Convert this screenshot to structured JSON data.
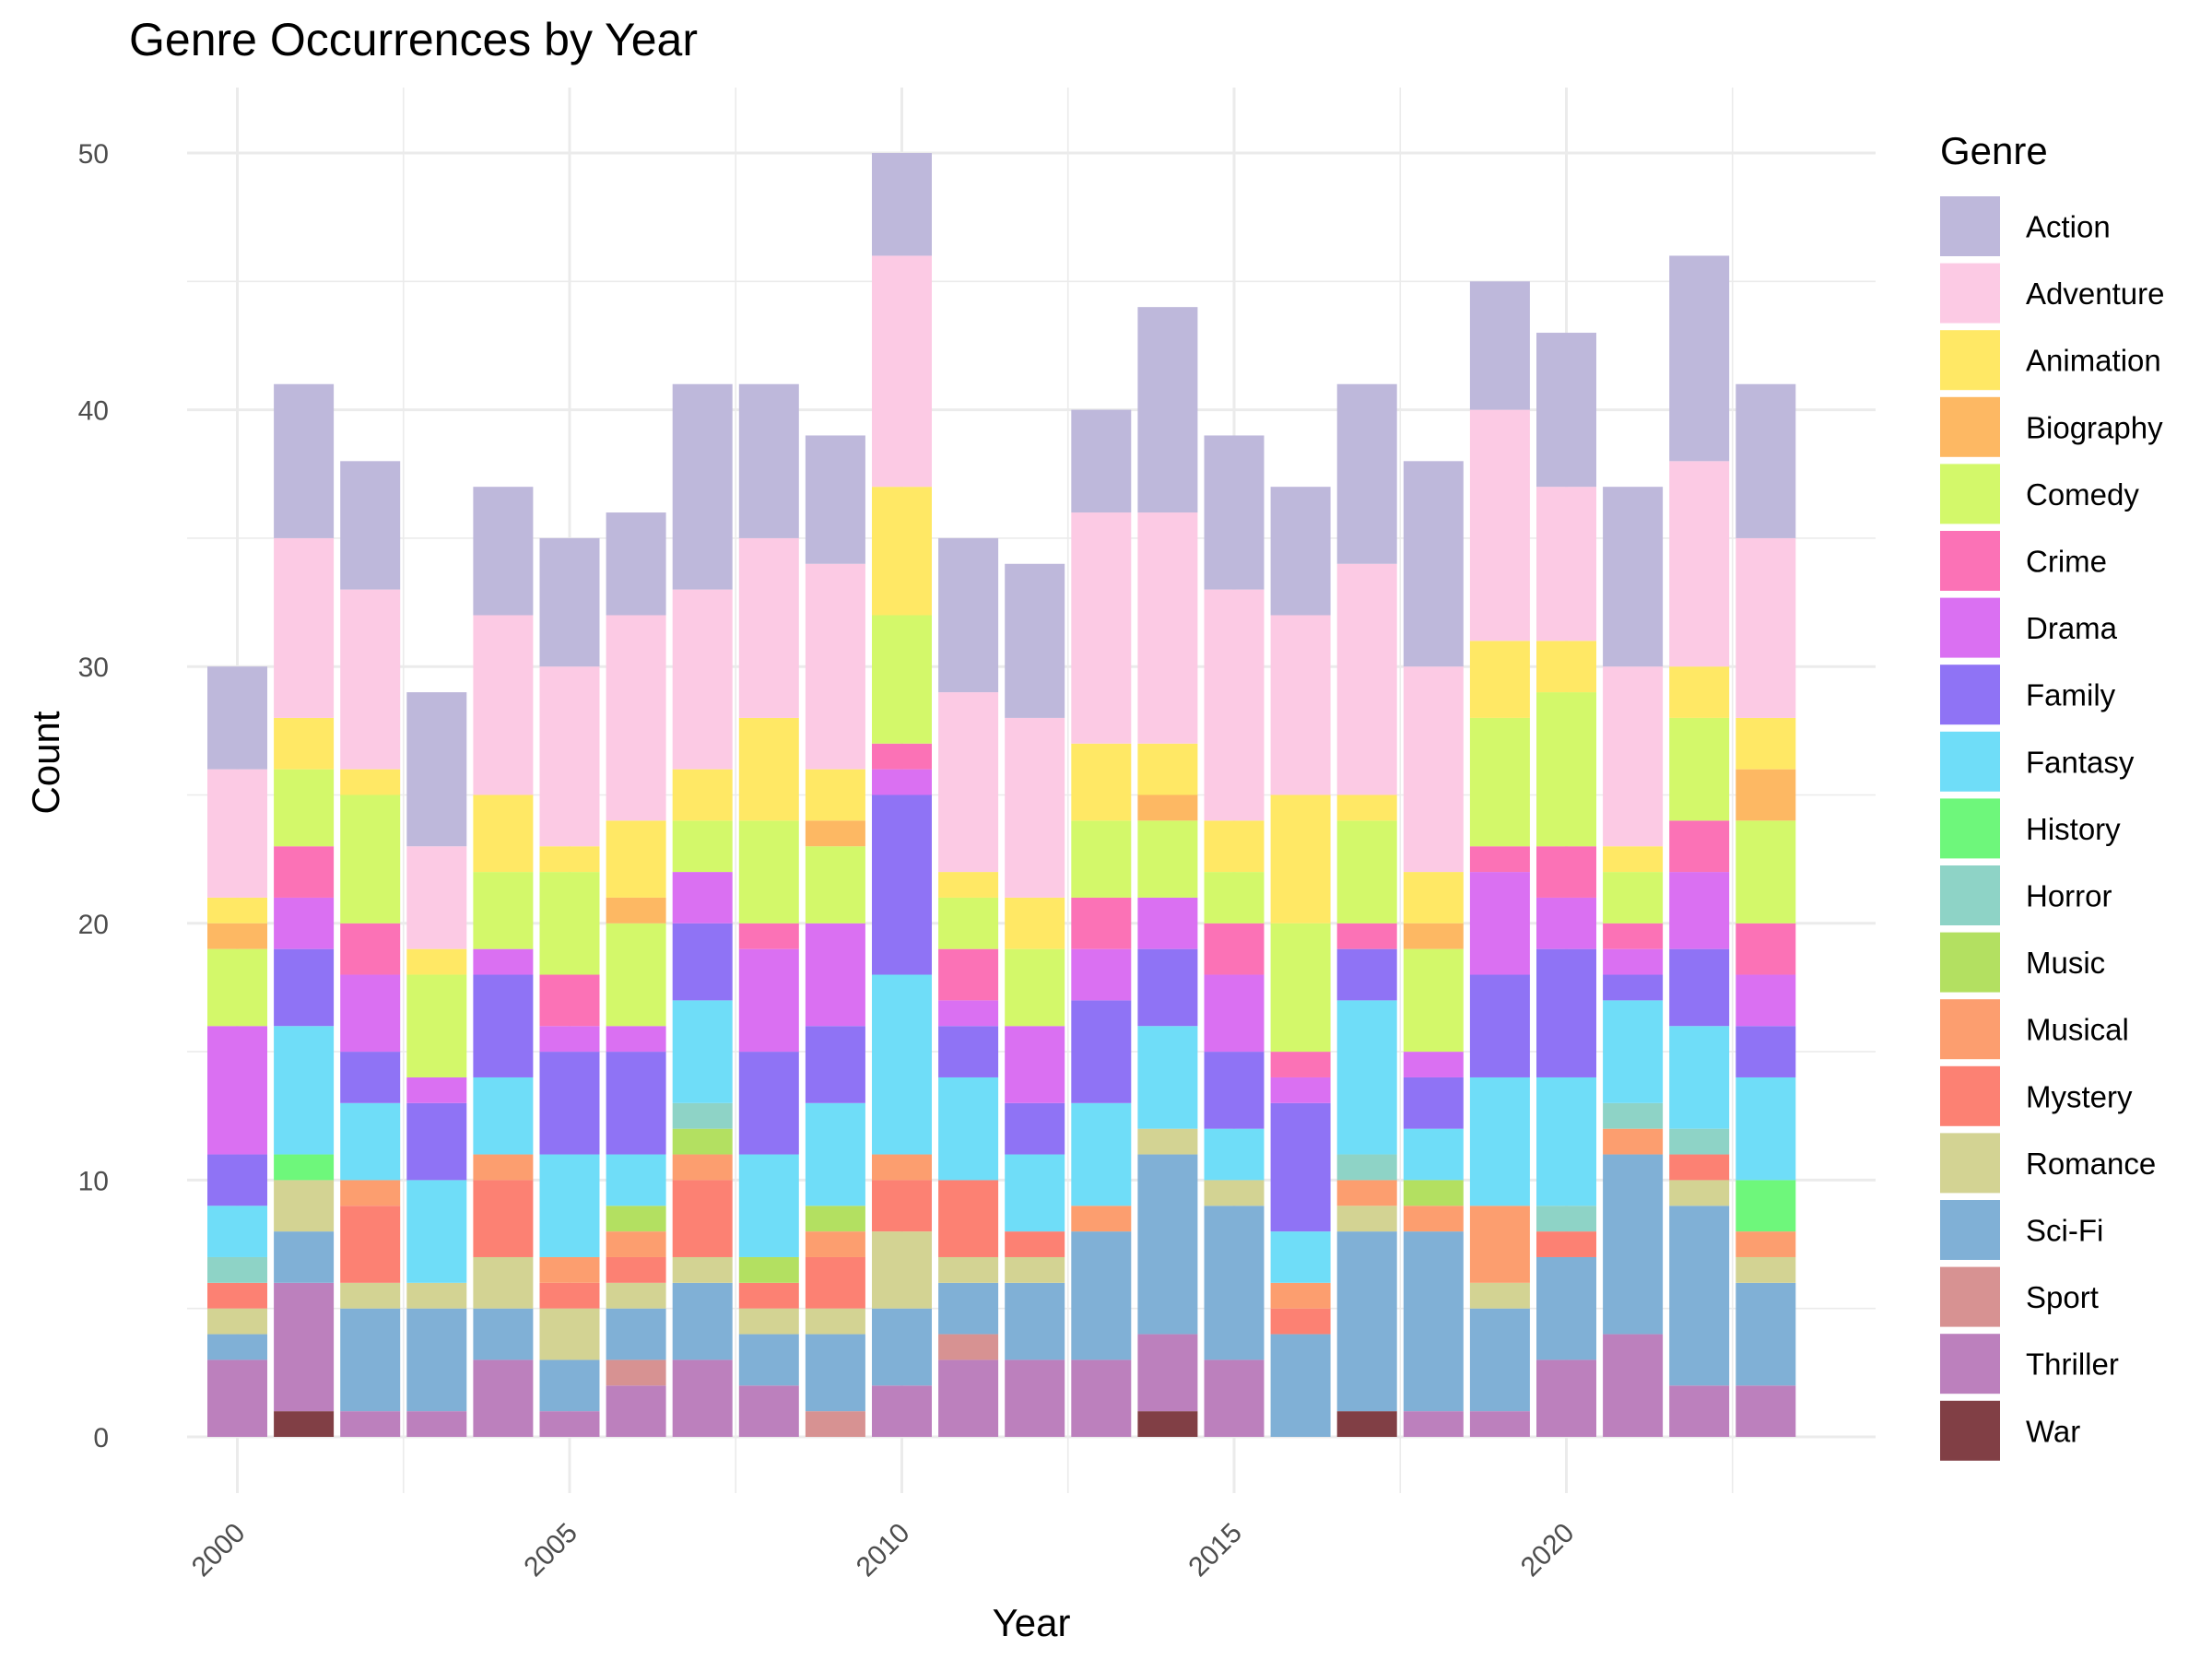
{
  "chart_data": {
    "type": "bar",
    "stacked": true,
    "title": "Genre Occurrences by Year",
    "xlabel": "Year",
    "ylabel": "Count",
    "x_tick_labels": [
      "2000",
      "2005",
      "2010",
      "2015",
      "2020"
    ],
    "y_tick_labels": [
      "0",
      "10",
      "20",
      "30",
      "40",
      "50"
    ],
    "ylim": [
      0,
      52
    ],
    "legend_title": "Genre",
    "legend_position": "right",
    "grid": true,
    "years": [
      2000,
      2001,
      2002,
      2003,
      2004,
      2005,
      2006,
      2007,
      2008,
      2009,
      2010,
      2011,
      2012,
      2013,
      2014,
      2015,
      2016,
      2017,
      2018,
      2019,
      2020,
      2021,
      2022,
      2023
    ],
    "series": [
      {
        "name": "Action",
        "color": "#BEB8DB",
        "values": [
          4,
          6,
          5,
          6,
          5,
          5,
          4,
          8,
          6,
          5,
          4,
          6,
          6,
          4,
          8,
          6,
          5,
          7,
          8,
          5,
          6,
          7,
          8,
          6
        ]
      },
      {
        "name": "Adventure",
        "color": "#FCCAE4",
        "values": [
          5,
          7,
          7,
          4,
          7,
          7,
          8,
          7,
          7,
          8,
          9,
          7,
          7,
          9,
          9,
          9,
          7,
          9,
          8,
          9,
          6,
          7,
          8,
          7
        ]
      },
      {
        "name": "Animation",
        "color": "#FFE865",
        "values": [
          1,
          2,
          1,
          1,
          3,
          1,
          3,
          2,
          4,
          2,
          5,
          1,
          2,
          3,
          2,
          2,
          5,
          1,
          2,
          3,
          2,
          1,
          2,
          2
        ]
      },
      {
        "name": "Biography",
        "color": "#FDB863",
        "values": [
          1,
          0,
          0,
          0,
          0,
          0,
          1,
          0,
          0,
          1,
          0,
          0,
          0,
          0,
          1,
          0,
          0,
          0,
          1,
          0,
          0,
          0,
          0,
          2
        ]
      },
      {
        "name": "Comedy",
        "color": "#D3F86A",
        "values": [
          3,
          3,
          5,
          4,
          3,
          4,
          4,
          2,
          4,
          3,
          5,
          2,
          3,
          3,
          3,
          2,
          5,
          4,
          4,
          5,
          6,
          2,
          4,
          4
        ]
      },
      {
        "name": "Crime",
        "color": "#FB72B6",
        "values": [
          0,
          2,
          2,
          0,
          0,
          2,
          0,
          0,
          1,
          0,
          1,
          2,
          0,
          2,
          0,
          2,
          1,
          1,
          0,
          1,
          2,
          1,
          2,
          2
        ]
      },
      {
        "name": "Drama",
        "color": "#DA70F2",
        "values": [
          5,
          2,
          3,
          1,
          1,
          1,
          1,
          2,
          4,
          4,
          1,
          1,
          3,
          2,
          2,
          3,
          1,
          0,
          1,
          4,
          2,
          1,
          3,
          2
        ]
      },
      {
        "name": "Family",
        "color": "#8F73F5",
        "values": [
          2,
          3,
          2,
          3,
          4,
          4,
          4,
          3,
          4,
          3,
          7,
          2,
          2,
          4,
          3,
          3,
          5,
          2,
          2,
          4,
          5,
          1,
          3,
          2
        ]
      },
      {
        "name": "Fantasy",
        "color": "#6FDDF8",
        "values": [
          2,
          5,
          3,
          4,
          3,
          4,
          2,
          4,
          4,
          4,
          7,
          4,
          3,
          4,
          4,
          2,
          2,
          6,
          2,
          5,
          5,
          4,
          4,
          4
        ]
      },
      {
        "name": "History",
        "color": "#6EF77B",
        "values": [
          0,
          1,
          0,
          0,
          0,
          0,
          0,
          0,
          0,
          0,
          0,
          0,
          0,
          0,
          0,
          0,
          0,
          0,
          0,
          0,
          0,
          0,
          0,
          2
        ]
      },
      {
        "name": "Horror",
        "color": "#8ED3C6",
        "values": [
          1,
          0,
          0,
          0,
          0,
          0,
          0,
          1,
          0,
          0,
          0,
          0,
          0,
          0,
          0,
          0,
          0,
          1,
          0,
          0,
          1,
          1,
          1,
          0
        ]
      },
      {
        "name": "Music",
        "color": "#B3E061",
        "values": [
          0,
          0,
          0,
          0,
          0,
          0,
          1,
          1,
          1,
          1,
          0,
          0,
          0,
          0,
          0,
          0,
          0,
          0,
          1,
          0,
          0,
          0,
          0,
          0
        ]
      },
      {
        "name": "Musical",
        "color": "#FC9E6F",
        "values": [
          0,
          0,
          1,
          0,
          1,
          1,
          1,
          1,
          0,
          1,
          1,
          0,
          0,
          1,
          0,
          0,
          1,
          1,
          1,
          3,
          0,
          1,
          0,
          1
        ]
      },
      {
        "name": "Mystery",
        "color": "#FC8173",
        "values": [
          1,
          0,
          3,
          0,
          3,
          1,
          1,
          3,
          1,
          2,
          2,
          3,
          1,
          0,
          0,
          0,
          1,
          0,
          0,
          0,
          1,
          0,
          1,
          0
        ]
      },
      {
        "name": "Romance",
        "color": "#D3D393",
        "values": [
          1,
          2,
          1,
          1,
          2,
          2,
          1,
          1,
          1,
          1,
          3,
          1,
          1,
          0,
          1,
          1,
          0,
          1,
          0,
          1,
          0,
          0,
          1,
          1
        ]
      },
      {
        "name": "Sci-Fi",
        "color": "#80B0D6",
        "values": [
          1,
          2,
          4,
          4,
          2,
          2,
          2,
          3,
          2,
          3,
          3,
          2,
          3,
          5,
          7,
          6,
          4,
          7,
          7,
          4,
          4,
          7,
          7,
          4
        ]
      },
      {
        "name": "Sport",
        "color": "#D79292",
        "values": [
          0,
          0,
          0,
          0,
          0,
          0,
          1,
          0,
          0,
          1,
          0,
          1,
          0,
          0,
          0,
          0,
          0,
          0,
          0,
          0,
          0,
          0,
          0,
          0
        ]
      },
      {
        "name": "Thriller",
        "color": "#BC80BD",
        "values": [
          3,
          5,
          1,
          1,
          3,
          1,
          2,
          3,
          2,
          0,
          2,
          3,
          3,
          3,
          3,
          3,
          0,
          0,
          1,
          1,
          3,
          4,
          2,
          2
        ]
      },
      {
        "name": "War",
        "color": "#813F45",
        "values": [
          0,
          1,
          0,
          0,
          0,
          0,
          0,
          0,
          0,
          0,
          0,
          0,
          0,
          0,
          1,
          0,
          0,
          1,
          0,
          0,
          0,
          0,
          0,
          0
        ]
      }
    ]
  }
}
